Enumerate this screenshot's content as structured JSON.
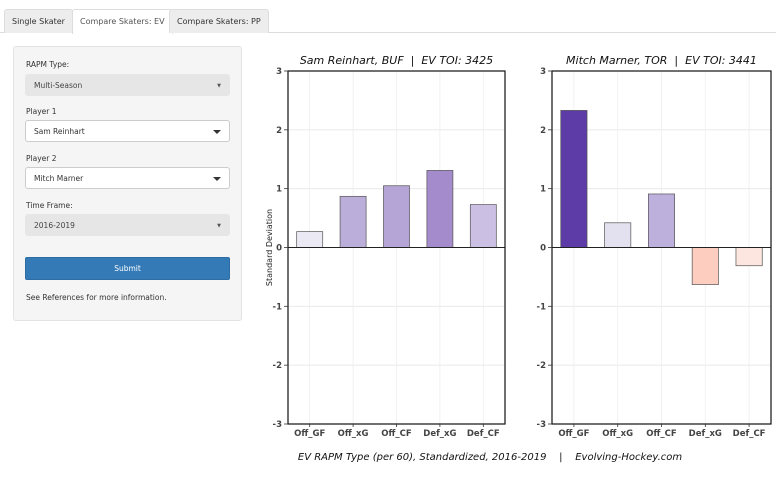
{
  "tabs": [
    {
      "label": "Single Skater",
      "active": false
    },
    {
      "label": "Compare Skaters: EV",
      "active": true
    },
    {
      "label": "Compare Skaters: PP",
      "active": false
    }
  ],
  "sidebar": {
    "rapm_type": {
      "label": "RAPM Type:",
      "value": "Multi-Season"
    },
    "player1": {
      "label": "Player 1",
      "value": "Sam Reinhart"
    },
    "player2": {
      "label": "Player 2",
      "value": "Mitch Marner"
    },
    "time_frame": {
      "label": "Time Frame:",
      "value": "2016-2019"
    },
    "submit_label": "Submit",
    "note": "See References for more information."
  },
  "chart_data": [
    {
      "type": "bar",
      "title": "Sam Reinhart, BUF  |  EV TOI: 3425",
      "categories": [
        "Off_GF",
        "Off_xG",
        "Off_CF",
        "Def_xG",
        "Def_CF"
      ],
      "values": [
        0.27,
        0.87,
        1.05,
        1.31,
        0.73
      ],
      "colors": [
        "#ebe9f4",
        "#bcaedb",
        "#b5a5d7",
        "#a48bcb",
        "#cbbfe3"
      ],
      "ylabel": "Standard Deviation",
      "ylim": [
        -3,
        3
      ],
      "yticks": [
        "3",
        "2",
        "1",
        "0",
        "-1",
        "-2",
        "-3"
      ],
      "grid": true
    },
    {
      "type": "bar",
      "title": "Mitch Marner, TOR  |  EV TOI: 3441",
      "categories": [
        "Off_GF",
        "Off_xG",
        "Off_CF",
        "Def_xG",
        "Def_CF"
      ],
      "values": [
        2.33,
        0.42,
        0.91,
        -0.63,
        -0.31
      ],
      "colors": [
        "#5e3ca7",
        "#e3e0ef",
        "#beb0dc",
        "#fdcdc0",
        "#fde6df"
      ],
      "ylabel": "",
      "ylim": [
        -3,
        3
      ],
      "yticks": [
        "3",
        "2",
        "1",
        "0",
        "-1",
        "-2",
        "-3"
      ],
      "grid": true
    }
  ],
  "chart_caption": "EV RAPM Type (per 60), Standardized, 2016-2019    |    Evolving-Hockey.com"
}
